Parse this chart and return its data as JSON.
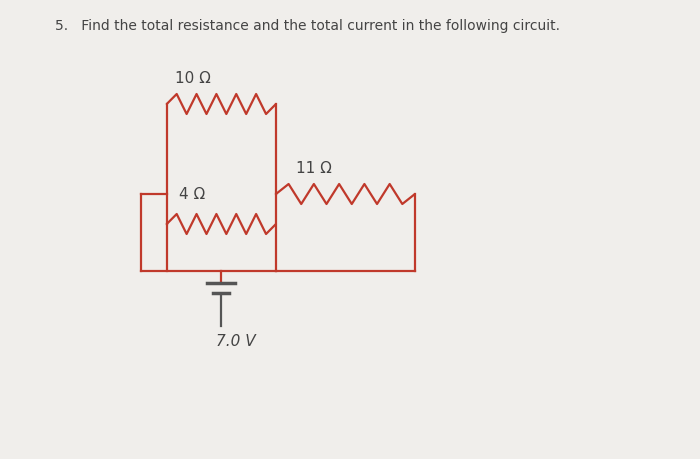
{
  "title": "5.   Find the total resistance and the total current in the following circuit.",
  "title_fontsize": 10,
  "circuit_color": "#c0392b",
  "text_color": "#444444",
  "bg_color": "#f0eeeb",
  "label_10": "10 Ω",
  "label_4": "4 Ω",
  "label_11": "11 Ω",
  "label_v": "7.0 V",
  "battery_color": "#555555",
  "label_fontsize": 11,
  "lw": 1.6
}
